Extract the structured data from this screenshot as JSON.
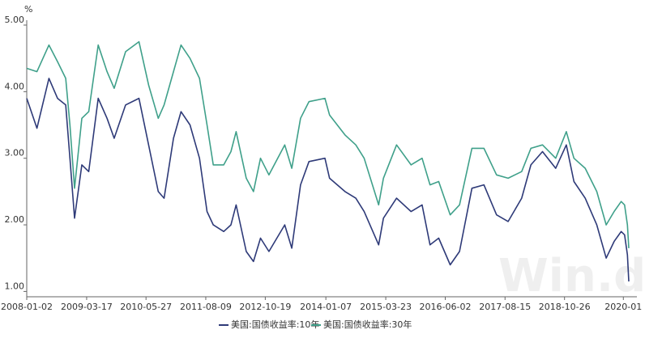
{
  "chart_data": {
    "type": "line",
    "unit": "%",
    "watermark": "Win.d",
    "x": [
      "2008-01-02",
      "2008-03-17",
      "2008-06-13",
      "2008-08-15",
      "2008-10-14",
      "2008-11-14",
      "2008-12-18",
      "2009-02-10",
      "2009-04-01",
      "2009-06-10",
      "2009-08-14",
      "2009-10-05",
      "2009-12-28",
      "2010-04-05",
      "2010-06-15",
      "2010-08-25",
      "2010-10-07",
      "2010-12-15",
      "2011-02-08",
      "2011-04-15",
      "2011-06-24",
      "2011-08-18",
      "2011-10-03",
      "2011-12-19",
      "2012-02-10",
      "2012-03-19",
      "2012-06-01",
      "2012-07-24",
      "2012-09-14",
      "2012-11-15",
      "2013-03-11",
      "2013-05-02",
      "2013-07-05",
      "2013-09-05",
      "2013-12-31",
      "2014-02-03",
      "2014-05-28",
      "2014-08-15",
      "2014-10-15",
      "2015-01-30",
      "2015-03-06",
      "2015-06-10",
      "2015-09-25",
      "2015-12-15",
      "2016-02-11",
      "2016-04-15",
      "2016-07-08",
      "2016-09-15",
      "2016-12-15",
      "2017-03-13",
      "2017-06-14",
      "2017-09-07",
      "2017-12-15",
      "2018-02-21",
      "2018-05-17",
      "2018-08-22",
      "2018-11-08",
      "2019-01-03",
      "2019-03-27",
      "2019-06-20",
      "2019-08-28",
      "2019-10-25",
      "2019-12-16",
      "2020-01-10",
      "2020-01-31",
      "2020-02-10"
    ],
    "xlim": [
      "2008-01-02",
      "2020-02-10"
    ],
    "xticks": [
      "2008-01-02",
      "2009-03-17",
      "2010-05-27",
      "2011-08-09",
      "2012-10-19",
      "2014-01-07",
      "2015-03-23",
      "2016-06-02",
      "2017-08-15",
      "2018-10-26",
      "2020-01"
    ],
    "ylim": [
      0.92,
      5.0
    ],
    "yticks": [
      {
        "value": 1,
        "label": "1.00"
      },
      {
        "value": 2,
        "label": "2.00"
      },
      {
        "value": 3,
        "label": "3.00"
      },
      {
        "value": 4,
        "label": "4.00"
      },
      {
        "value": 5,
        "label": "5.00"
      }
    ],
    "series": [
      {
        "name": "美国:国债收益率:10年",
        "color": "#2e3a78",
        "values": [
          3.9,
          3.45,
          4.2,
          3.9,
          3.8,
          3.0,
          2.1,
          2.9,
          2.8,
          3.9,
          3.6,
          3.3,
          3.8,
          3.9,
          3.2,
          2.5,
          2.4,
          3.3,
          3.7,
          3.5,
          3.0,
          2.2,
          2.0,
          1.9,
          2.0,
          2.3,
          1.6,
          1.45,
          1.8,
          1.6,
          2.0,
          1.65,
          2.6,
          2.95,
          3.0,
          2.7,
          2.5,
          2.4,
          2.2,
          1.7,
          2.1,
          2.4,
          2.2,
          2.3,
          1.7,
          1.8,
          1.4,
          1.6,
          2.55,
          2.6,
          2.15,
          2.05,
          2.4,
          2.9,
          3.1,
          2.85,
          3.2,
          2.65,
          2.4,
          2.0,
          1.5,
          1.75,
          1.9,
          1.85,
          1.55,
          1.15
        ]
      },
      {
        "name": "美国:国债收益率:30年",
        "color": "#3fa08a",
        "values": [
          4.35,
          4.3,
          4.7,
          4.45,
          4.2,
          3.5,
          2.55,
          3.6,
          3.7,
          4.7,
          4.3,
          4.05,
          4.6,
          4.75,
          4.1,
          3.6,
          3.8,
          4.3,
          4.7,
          4.5,
          4.2,
          3.5,
          2.9,
          2.9,
          3.1,
          3.4,
          2.7,
          2.5,
          3.0,
          2.75,
          3.2,
          2.85,
          3.6,
          3.85,
          3.9,
          3.65,
          3.35,
          3.2,
          3.0,
          2.3,
          2.7,
          3.2,
          2.9,
          3.0,
          2.6,
          2.65,
          2.15,
          2.3,
          3.15,
          3.15,
          2.75,
          2.7,
          2.8,
          3.15,
          3.2,
          3.0,
          3.4,
          3.0,
          2.85,
          2.5,
          2.0,
          2.2,
          2.35,
          2.3,
          2.0,
          1.65
        ]
      }
    ]
  }
}
